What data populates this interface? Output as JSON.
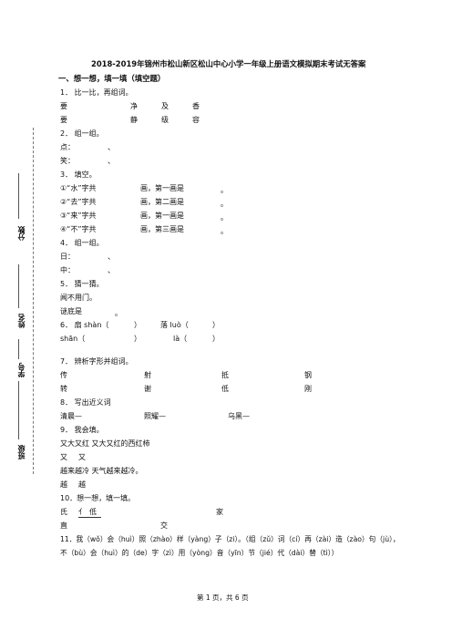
{
  "title": "2018-2019年锦州市松山新区松山中心小学一年级上册语文模拟期末考试无答案",
  "section1": "一、想一想，填一填（填空题）",
  "side": {
    "score": "分数",
    "name": "姓名",
    "id": "学号",
    "class": "班级"
  },
  "q1": {
    "head": "1．  比一比，再组词。",
    "r1": [
      "要",
      "净",
      "及",
      "香"
    ],
    "r2": [
      "要",
      "静",
      "级",
      "容"
    ]
  },
  "q2": {
    "head": "2．  组一组。",
    "r1": [
      "点：",
      "、"
    ],
    "r2": [
      "笑：",
      "、"
    ]
  },
  "q3": {
    "head": "3．  填空。",
    "rows": [
      {
        "a": "①“水”字共",
        "b": "画，第一画是",
        "c": "。"
      },
      {
        "a": "②“去”字共",
        "b": "画，第二画是",
        "c": "。"
      },
      {
        "a": "③“来”字共",
        "b": "画，第一画是",
        "c": "。"
      },
      {
        "a": "④“不”字共",
        "b": "画，第三画是",
        "c": "。"
      }
    ]
  },
  "q4": {
    "head": "4．  组一组。",
    "r1": [
      "日：",
      "、"
    ],
    "r2": [
      "中：",
      "、"
    ]
  },
  "q5": {
    "head": "5．  猜一猜。",
    "l1": "闻不用门。",
    "l2": "谜底是",
    "l2end": "。"
  },
  "q6": {
    "l1a": "6．  扇 shàn（",
    "l1b": "）",
    "l1c": "落 luò（",
    "l1d": "）",
    "l2a": "shān（",
    "l2b": "）",
    "l2c": "là（",
    "l2d": "）"
  },
  "q7": {
    "head": "7．  辨析字形并组词。",
    "r1": [
      "传",
      "射",
      "抵",
      "钢"
    ],
    "r2": [
      "转",
      "谢",
      "低",
      "刚"
    ]
  },
  "q8": {
    "head": "8．  写出近义词",
    "items": [
      "清晨—",
      "照耀—",
      "乌黑—"
    ]
  },
  "q9": {
    "head": "9．  我会填。",
    "l1": "又大又红    又大又红的西红柿",
    "l2": [
      "又",
      "又"
    ],
    "l3": "越来越冷     天气越来越冷。",
    "l4": [
      "越",
      "越"
    ]
  },
  "q10": {
    "head": "10．想一想，填一填。",
    "r1": [
      "氏",
      "亻",
      "低",
      "家"
    ],
    "r2": [
      "直",
      "交"
    ]
  },
  "q11": {
    "l1": "11．我（wǒ）会（huì）照（zhào）样（yàng）子（zi）。（组（zǔ）词（cí）再（zài）造（zào）句（jù），",
    "l2": "不（bù）会（huì）的（de）字（zì）用（yòng）音（yīn）节（jié）代（dài）替（tì））"
  },
  "footer": "第 1 页，共 6 页"
}
